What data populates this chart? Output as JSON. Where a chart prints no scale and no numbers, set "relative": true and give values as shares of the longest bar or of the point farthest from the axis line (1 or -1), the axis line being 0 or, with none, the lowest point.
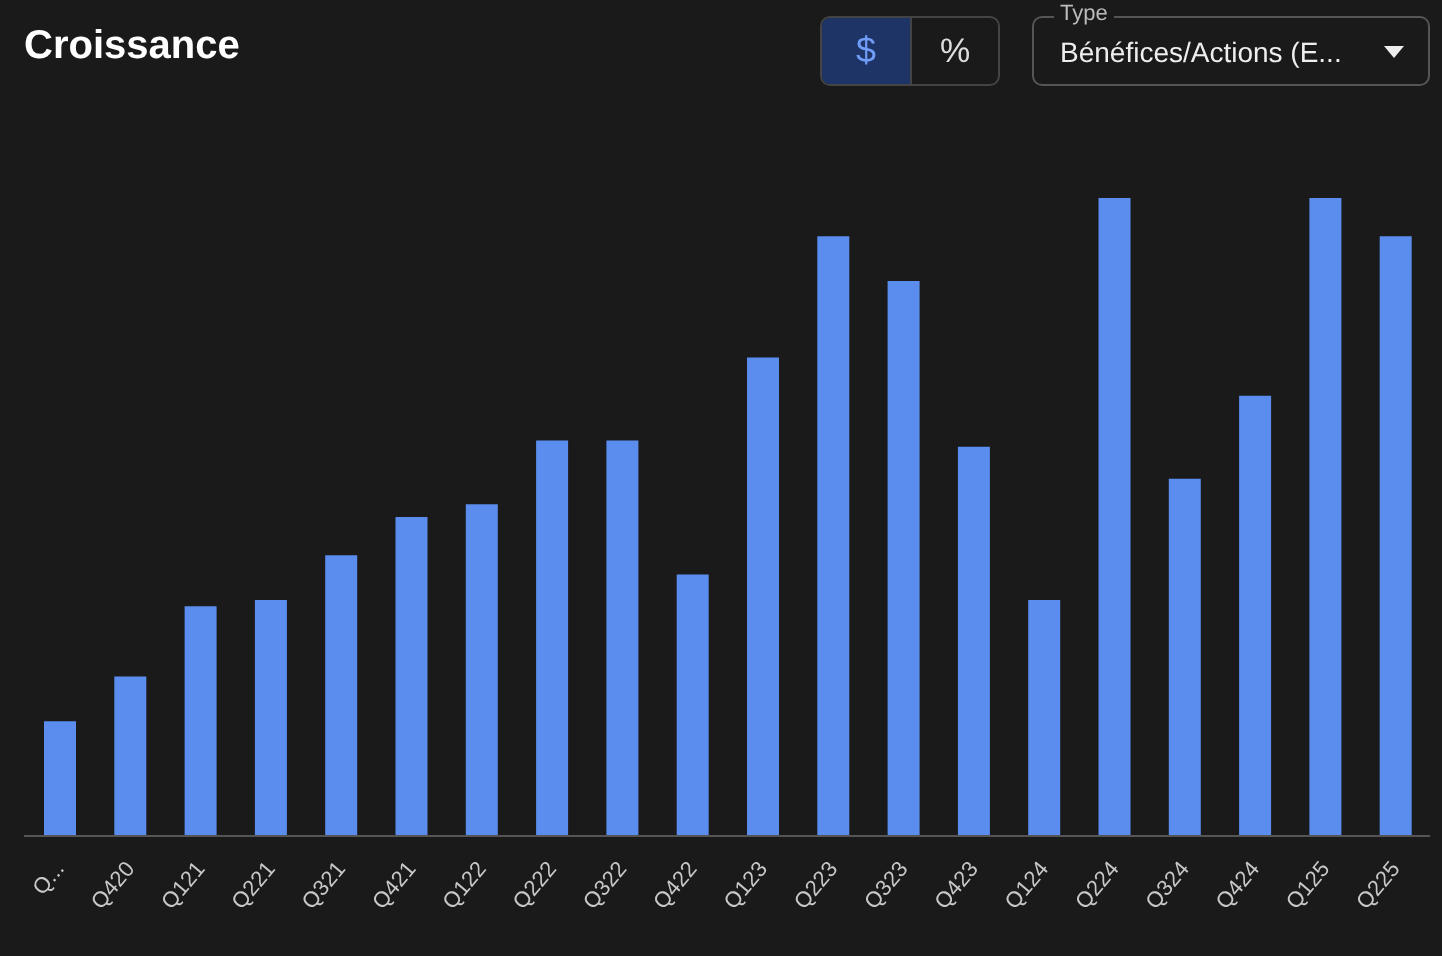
{
  "chart_data": {
    "type": "bar",
    "title": "Croissance",
    "relative": true,
    "color": "#5b8def",
    "grid": false,
    "categories": [
      "Q...",
      "Q420",
      "Q121",
      "Q221",
      "Q321",
      "Q421",
      "Q122",
      "Q222",
      "Q322",
      "Q422",
      "Q123",
      "Q223",
      "Q323",
      "Q423",
      "Q124",
      "Q224",
      "Q324",
      "Q424",
      "Q125",
      "Q225"
    ],
    "values": [
      0.18,
      0.25,
      0.36,
      0.37,
      0.44,
      0.5,
      0.52,
      0.62,
      0.62,
      0.41,
      0.75,
      0.94,
      0.87,
      0.61,
      0.37,
      1,
      0.56,
      0.69,
      1,
      0.94
    ],
    "annotations": [
      "$",
      "%",
      "Type",
      "Bénéfices/Actions (E..."
    ]
  }
}
